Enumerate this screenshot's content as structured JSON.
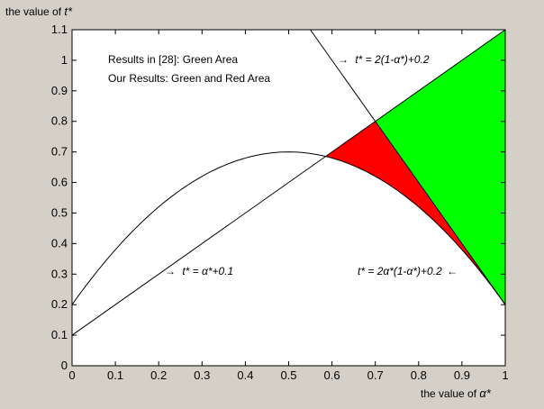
{
  "chart_data": {
    "type": "area",
    "xlabel_prefix": "the value of",
    "xlabel_symbol": "α*",
    "ylabel_prefix": "the value of",
    "ylabel_symbol": "t*",
    "xlim": [
      0,
      1
    ],
    "ylim": [
      0,
      1.1
    ],
    "xticks": [
      "0",
      "0.1",
      "0.2",
      "0.3",
      "0.4",
      "0.5",
      "0.6",
      "0.7",
      "0.8",
      "0.9",
      "1"
    ],
    "yticks": [
      "0",
      "0.1",
      "0.2",
      "0.3",
      "0.4",
      "0.5",
      "0.6",
      "0.7",
      "0.8",
      "0.9",
      "1",
      "1.1"
    ],
    "grid": false,
    "notes": [
      "Results in [28]: Green Area",
      "Our Results: Green and Red Area"
    ],
    "series": [
      {
        "name": "t* = α*+0.1",
        "formula": "t = a + 0.1",
        "color": "#000000"
      },
      {
        "name": "t* = 2(1-α*)+0.2",
        "formula": "t = 2(1 - a) + 0.2",
        "color": "#000000"
      },
      {
        "name": "t* = 2α*(1-α*)+0.2",
        "formula": "t = 2a(1 - a) + 0.2",
        "color": "#000000"
      }
    ],
    "regions": [
      {
        "name": "green",
        "color": "#00ff00",
        "x_range": [
          0.7,
          1
        ],
        "upper": "min(1.1, a + 0.1)",
        "lower": "max(2(1-a)+0.2, 2a(1-a)+0.2)"
      },
      {
        "name": "red",
        "color": "#ff0000",
        "x_range": [
          0.5873,
          1
        ],
        "upper": "min(a + 0.1, 2(1-a)+0.2)",
        "lower": "2a(1-a)+0.2"
      }
    ],
    "annotations": [
      {
        "arrow": "→",
        "prefix": "t* = ",
        "text": "2(1-α*)+0.2"
      },
      {
        "arrow": "→",
        "prefix": "t* = ",
        "text": "α*+0.1"
      },
      {
        "arrow": "←",
        "prefix": "t* = ",
        "text": "2α*(1-α*)+0.2"
      }
    ]
  }
}
